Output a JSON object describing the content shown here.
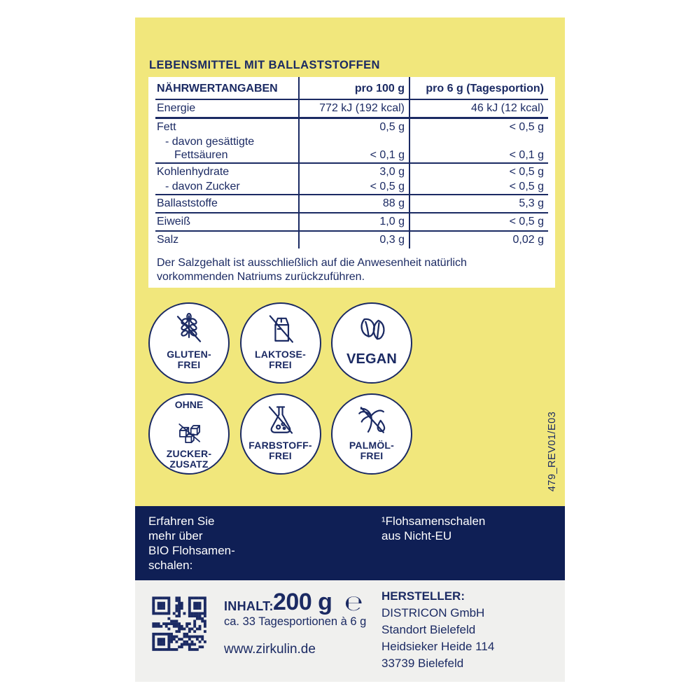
{
  "colors": {
    "yellow": "#F1E77C",
    "navy_text": "#1B2A63",
    "dark_blue_band": "#0F1F55",
    "footer_gray": "#F0F0EE",
    "white": "#FFFFFF"
  },
  "header": {
    "title": "LEBENSMITTEL MIT BALLASTSTOFFEN"
  },
  "nutrition_table": {
    "col_headers": [
      "NÄHRWERTANGABEN",
      "pro 100 g",
      "pro 6 g (Tagesportion)"
    ],
    "rows": [
      {
        "label": "Energie",
        "per100": "772 kJ (192 kcal)",
        "per6": "46 kJ (12 kcal)",
        "sep": "thick",
        "indent": 0
      },
      {
        "label": "Fett",
        "per100": "0,5 g",
        "per6": "< 0,5 g",
        "sep": "none",
        "indent": 0
      },
      {
        "label": "- davon gesättigte",
        "per100": "",
        "per6": "",
        "sep": "none",
        "indent": 1
      },
      {
        "label": "Fettsäuren",
        "per100": "< 0,1 g",
        "per6": "< 0,1 g",
        "sep": "thin",
        "indent": 2
      },
      {
        "label": "Kohlenhydrate",
        "per100": "3,0 g",
        "per6": "< 0,5 g",
        "sep": "none",
        "indent": 0
      },
      {
        "label": "- davon Zucker",
        "per100": "< 0,5 g",
        "per6": "< 0,5 g",
        "sep": "thin",
        "indent": 1
      },
      {
        "label": "Ballaststoffe",
        "per100": "88 g",
        "per6": "5,3 g",
        "sep": "thin",
        "indent": 0
      },
      {
        "label": "Eiweiß",
        "per100": "1,0 g",
        "per6": "< 0,5 g",
        "sep": "thin",
        "indent": 0
      },
      {
        "label": "Salz",
        "per100": "0,3 g",
        "per6": "0,02 g",
        "sep": "none",
        "indent": 0
      }
    ]
  },
  "salt_note": "Der Salzgehalt ist ausschließlich auf die Anwesenheit natürlich vorkommenden Natriums zurückzuführen.",
  "badges": {
    "row1": [
      {
        "name": "gluten-frei",
        "icon": "wheat-crossed-icon",
        "lines": [
          "GLUTEN-",
          "FREI"
        ]
      },
      {
        "name": "laktose-frei",
        "icon": "milk-carton-crossed-icon",
        "lines": [
          "LAKTOSE-",
          "FREI"
        ]
      },
      {
        "name": "vegan",
        "icon": "leaves-icon",
        "lines": [
          "VEGAN"
        ],
        "large": true
      }
    ],
    "row2": [
      {
        "name": "ohne-zuckerzusatz",
        "icon": "sugar-cubes-crossed-icon",
        "top": "OHNE",
        "lines": [
          "ZUCKER-",
          "ZUSATZ"
        ]
      },
      {
        "name": "farbstoff-frei",
        "icon": "flask-crossed-icon",
        "lines": [
          "FARBSTOFF-",
          "FREI"
        ]
      },
      {
        "name": "palmoel-frei",
        "icon": "palm-crossed-icon",
        "lines": [
          "PALMÖL-",
          "FREI"
        ]
      }
    ]
  },
  "revision_code": "479_REV01/E03",
  "info_band": {
    "left_lines": [
      "Erfahren Sie",
      "mehr über",
      "BIO Flohsamen-",
      "schalen:"
    ],
    "right_lines": [
      "¹Flohsamenschalen",
      "aus Nicht-EU"
    ]
  },
  "footer": {
    "content_label": "INHALT:",
    "content_amount": "200 g",
    "estimated_sign": "℮",
    "portions": "ca. 33 Tagesportionen à 6 g",
    "website": "www.zirkulin.de",
    "manufacturer_label": "HERSTELLER:",
    "manufacturer_lines": [
      "DISTRICON GmbH",
      "Standort Bielefeld",
      "Heidsieker Heide 114",
      "33739 Bielefeld"
    ]
  }
}
